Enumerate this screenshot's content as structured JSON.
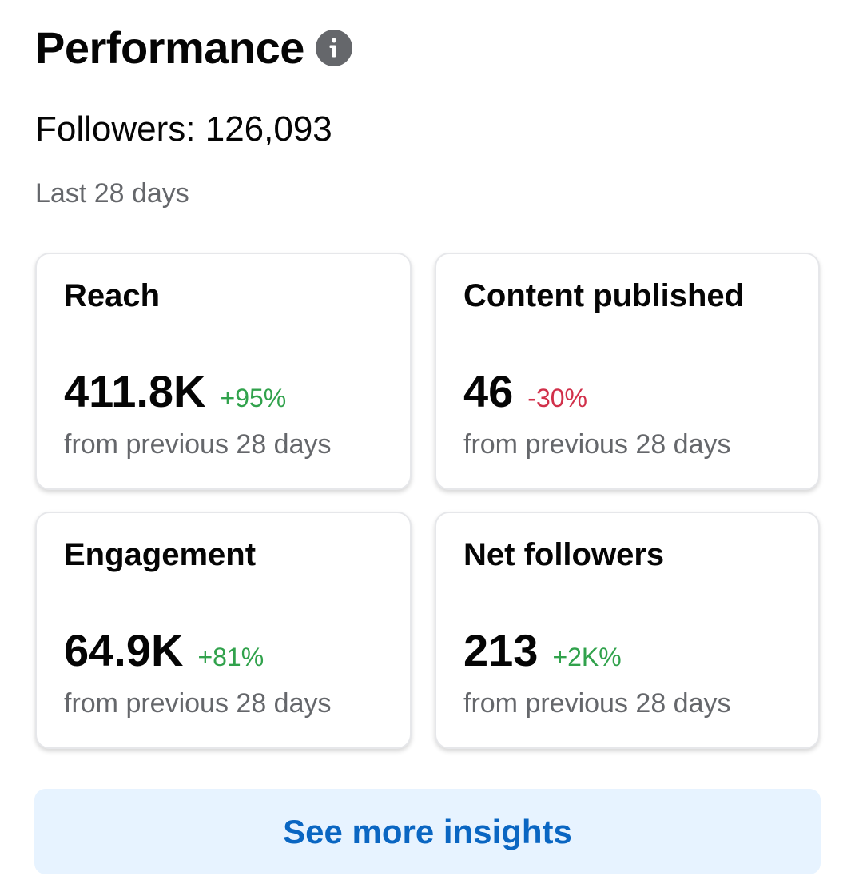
{
  "header": {
    "title": "Performance",
    "info_icon": "info-icon"
  },
  "followers_text": "Followers: 126,093",
  "period_label": "Last 28 days",
  "cards": [
    {
      "label": "Reach",
      "value": "411.8K",
      "change": "+95%",
      "trend": "up",
      "sub": "from previous 28 days"
    },
    {
      "label": "Content published",
      "value": "46",
      "change": "-30%",
      "trend": "down",
      "sub": "from previous 28 days"
    },
    {
      "label": "Engagement",
      "value": "64.9K",
      "change": "+81%",
      "trend": "up",
      "sub": "from previous 28 days"
    },
    {
      "label": "Net followers",
      "value": "213",
      "change": "+2K%",
      "trend": "up",
      "sub": "from previous 28 days"
    }
  ],
  "cta": {
    "label": "See more insights"
  },
  "colors": {
    "positive": "#31a24c",
    "negative": "#d1304a",
    "link": "#0a66c2",
    "button_bg": "#e7f3ff",
    "muted": "#65676b"
  }
}
